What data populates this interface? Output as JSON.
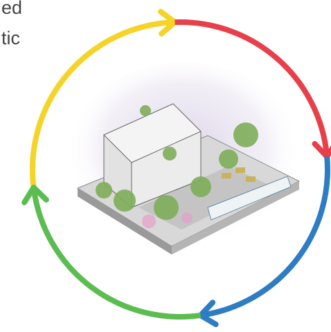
{
  "text_fragments": [
    "ed",
    "tic"
  ]
}
